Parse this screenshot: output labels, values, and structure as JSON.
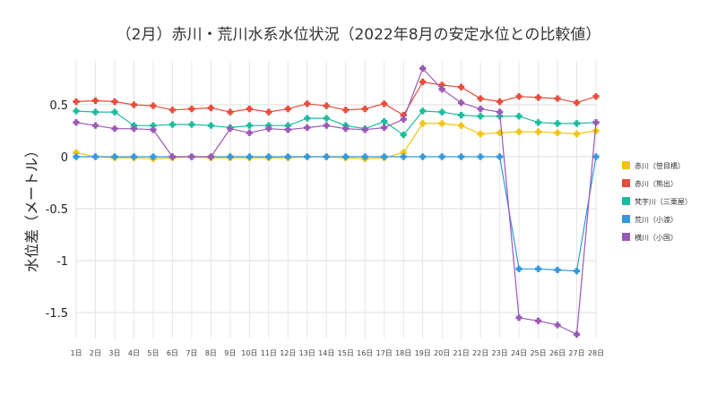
{
  "chart_data": {
    "type": "line",
    "title": "（2月）赤川・荒川水系水位状況（2022年8月の安定水位との比較値）",
    "ylabel": "水位差（メートル）",
    "xlabel": "",
    "ylim": [
      -1.8,
      0.9
    ],
    "yticks": [
      0.5,
      0,
      -0.5,
      -1,
      -1.5
    ],
    "ytick_labels": [
      "0.5",
      "0",
      "-0.5",
      "-1",
      "-1.5"
    ],
    "grid": true,
    "legend_position": "right",
    "categories": [
      "1日",
      "2日",
      "3日",
      "4日",
      "5日",
      "6日",
      "7日",
      "8日",
      "9日",
      "10日",
      "11日",
      "12日",
      "13日",
      "14日",
      "15日",
      "16日",
      "17日",
      "18日",
      "19日",
      "20日",
      "21日",
      "22日",
      "23日",
      "24日",
      "25日",
      "26日",
      "27日",
      "28日"
    ],
    "series": [
      {
        "name": "赤川（笹目橋）",
        "color": "#f1c40f",
        "values": [
          0.04,
          0.0,
          -0.01,
          -0.01,
          -0.02,
          -0.01,
          0.0,
          -0.01,
          -0.01,
          -0.01,
          -0.01,
          -0.01,
          0.0,
          0.0,
          -0.01,
          -0.02,
          -0.01,
          0.04,
          0.32,
          0.32,
          0.3,
          0.22,
          0.23,
          0.24,
          0.24,
          0.23,
          0.22,
          0.25
        ]
      },
      {
        "name": "赤川（熊出）",
        "color": "#e74c3c",
        "values": [
          0.53,
          0.54,
          0.53,
          0.5,
          0.49,
          0.45,
          0.46,
          0.47,
          0.43,
          0.46,
          0.43,
          0.46,
          0.51,
          0.49,
          0.45,
          0.46,
          0.51,
          0.4,
          0.72,
          0.69,
          0.67,
          0.56,
          0.53,
          0.58,
          0.57,
          0.56,
          0.52,
          0.58
        ]
      },
      {
        "name": "梵字川（三栗屋）",
        "color": "#1abc9c",
        "values": [
          0.44,
          0.43,
          0.43,
          0.3,
          0.3,
          0.31,
          0.31,
          0.3,
          0.28,
          0.3,
          0.3,
          0.3,
          0.37,
          0.37,
          0.3,
          0.27,
          0.34,
          0.21,
          0.44,
          0.43,
          0.4,
          0.39,
          0.39,
          0.39,
          0.33,
          0.32,
          0.32,
          0.33
        ]
      },
      {
        "name": "荒川（小渡）",
        "color": "#3498db",
        "values": [
          0.0,
          0.0,
          0.0,
          0.0,
          0.0,
          0.0,
          0.0,
          0.0,
          0.0,
          0.0,
          0.0,
          0.0,
          0.0,
          0.0,
          0.0,
          0.0,
          0.0,
          0.0,
          0.0,
          0.0,
          0.0,
          0.0,
          0.0,
          -1.08,
          -1.08,
          -1.09,
          -1.1,
          0.0
        ]
      },
      {
        "name": "横川（小国）",
        "color": "#9b59b6",
        "values": [
          0.33,
          0.3,
          0.27,
          0.27,
          0.26,
          0.0,
          0.0,
          0.0,
          0.27,
          0.23,
          0.27,
          0.26,
          0.28,
          0.3,
          0.27,
          0.26,
          0.28,
          0.36,
          0.85,
          0.65,
          0.52,
          0.46,
          0.43,
          -1.55,
          -1.58,
          -1.62,
          -1.71,
          0.33
        ]
      }
    ]
  }
}
